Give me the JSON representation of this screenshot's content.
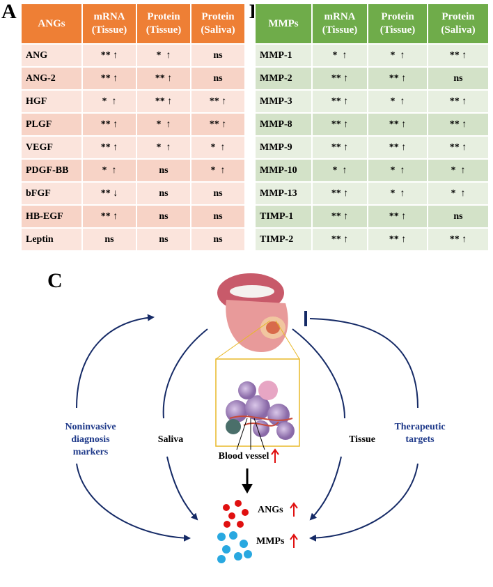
{
  "panel_a": {
    "label": "A",
    "header": [
      [
        "ANGs"
      ],
      [
        "mRNA",
        "(Tissue)"
      ],
      [
        "Protein",
        "(Tissue)"
      ],
      [
        "Protein",
        "(Saliva)"
      ]
    ],
    "rows": [
      [
        "ANG",
        "** ↑",
        "*  ↑",
        "ns"
      ],
      [
        "ANG-2",
        "** ↑",
        "** ↑",
        "ns"
      ],
      [
        "HGF",
        "*  ↑",
        "** ↑",
        "** ↑"
      ],
      [
        "PLGF",
        "** ↑",
        "*  ↑",
        "** ↑"
      ],
      [
        "VEGF",
        "** ↑",
        "*  ↑",
        "*  ↑"
      ],
      [
        "PDGF-BB",
        "*  ↑",
        "ns",
        "*  ↑"
      ],
      [
        "bFGF",
        "** ↓",
        "ns",
        "ns"
      ],
      [
        "HB-EGF",
        "** ↑",
        "ns",
        "ns"
      ],
      [
        "Leptin",
        "ns",
        "ns",
        "ns"
      ]
    ]
  },
  "panel_b": {
    "label": "B",
    "header": [
      [
        "MMPs"
      ],
      [
        "mRNA",
        "(Tissue)"
      ],
      [
        "Protein",
        "(Tissue)"
      ],
      [
        "Protein",
        "(Saliva)"
      ]
    ],
    "rows": [
      [
        "MMP-1",
        "*  ↑",
        "*  ↑",
        "** ↑"
      ],
      [
        "MMP-2",
        "** ↑",
        "** ↑",
        "ns"
      ],
      [
        "MMP-3",
        "** ↑",
        "*  ↑",
        "** ↑"
      ],
      [
        "MMP-8",
        "** ↑",
        "** ↑",
        "** ↑"
      ],
      [
        "MMP-9",
        "** ↑",
        "** ↑",
        "** ↑"
      ],
      [
        "MMP-10",
        "*  ↑",
        "*  ↑",
        "*  ↑"
      ],
      [
        "MMP-13",
        "** ↑",
        "*  ↑",
        "*  ↑"
      ],
      [
        "TIMP-1",
        "** ↑",
        "** ↑",
        "ns"
      ],
      [
        "TIMP-2",
        "** ↑",
        "** ↑",
        "** ↑"
      ]
    ]
  },
  "panel_c": {
    "label": "C",
    "left_label": [
      "Noninvasive",
      "diagnosis",
      "markers"
    ],
    "saliva": "Saliva",
    "tissue": "Tissue",
    "right_label": [
      "Therapeutic",
      "targets"
    ],
    "blood_vessel": "Blood vessel",
    "angs": "ANGs",
    "mmps": "MMPs"
  }
}
